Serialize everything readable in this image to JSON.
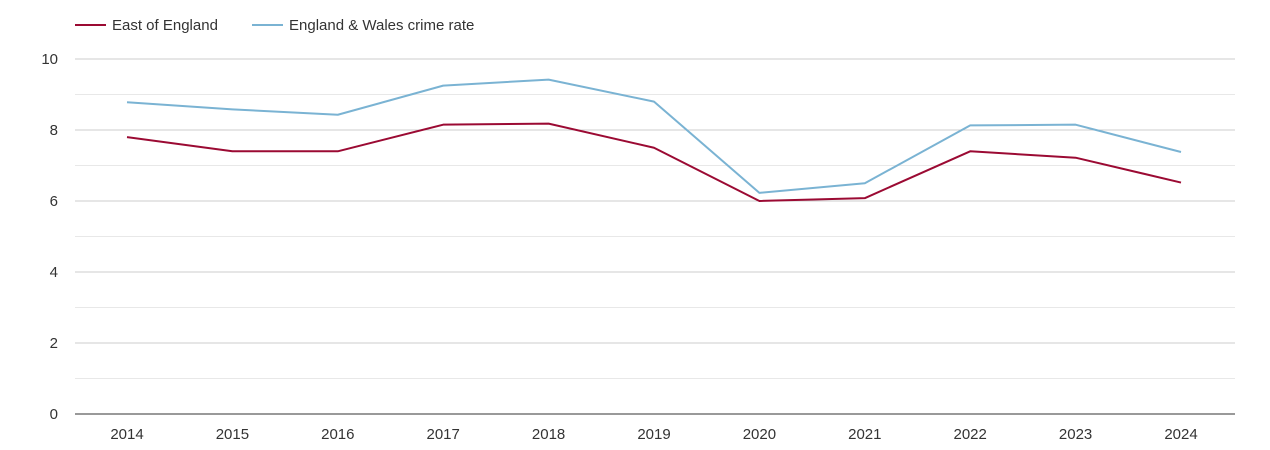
{
  "chart_data": {
    "type": "line",
    "title": "",
    "xlabel": "",
    "ylabel": "",
    "x": [
      "2014",
      "2015",
      "2016",
      "2017",
      "2018",
      "2019",
      "2020",
      "2021",
      "2022",
      "2023",
      "2024"
    ],
    "ylim": [
      0,
      10
    ],
    "yticks": [
      0,
      2,
      4,
      6,
      8,
      10
    ],
    "grid": true,
    "legend_position": "top-left",
    "series": [
      {
        "name": "East of England",
        "color": "#9b0a33",
        "values": [
          7.8,
          7.4,
          7.4,
          8.15,
          8.18,
          7.5,
          6.0,
          6.08,
          7.4,
          7.22,
          6.52
        ]
      },
      {
        "name": "England & Wales crime rate",
        "color": "#7ab3d3",
        "values": [
          8.78,
          8.58,
          8.43,
          9.25,
          9.42,
          8.8,
          6.23,
          6.5,
          8.13,
          8.15,
          7.38
        ]
      }
    ]
  }
}
